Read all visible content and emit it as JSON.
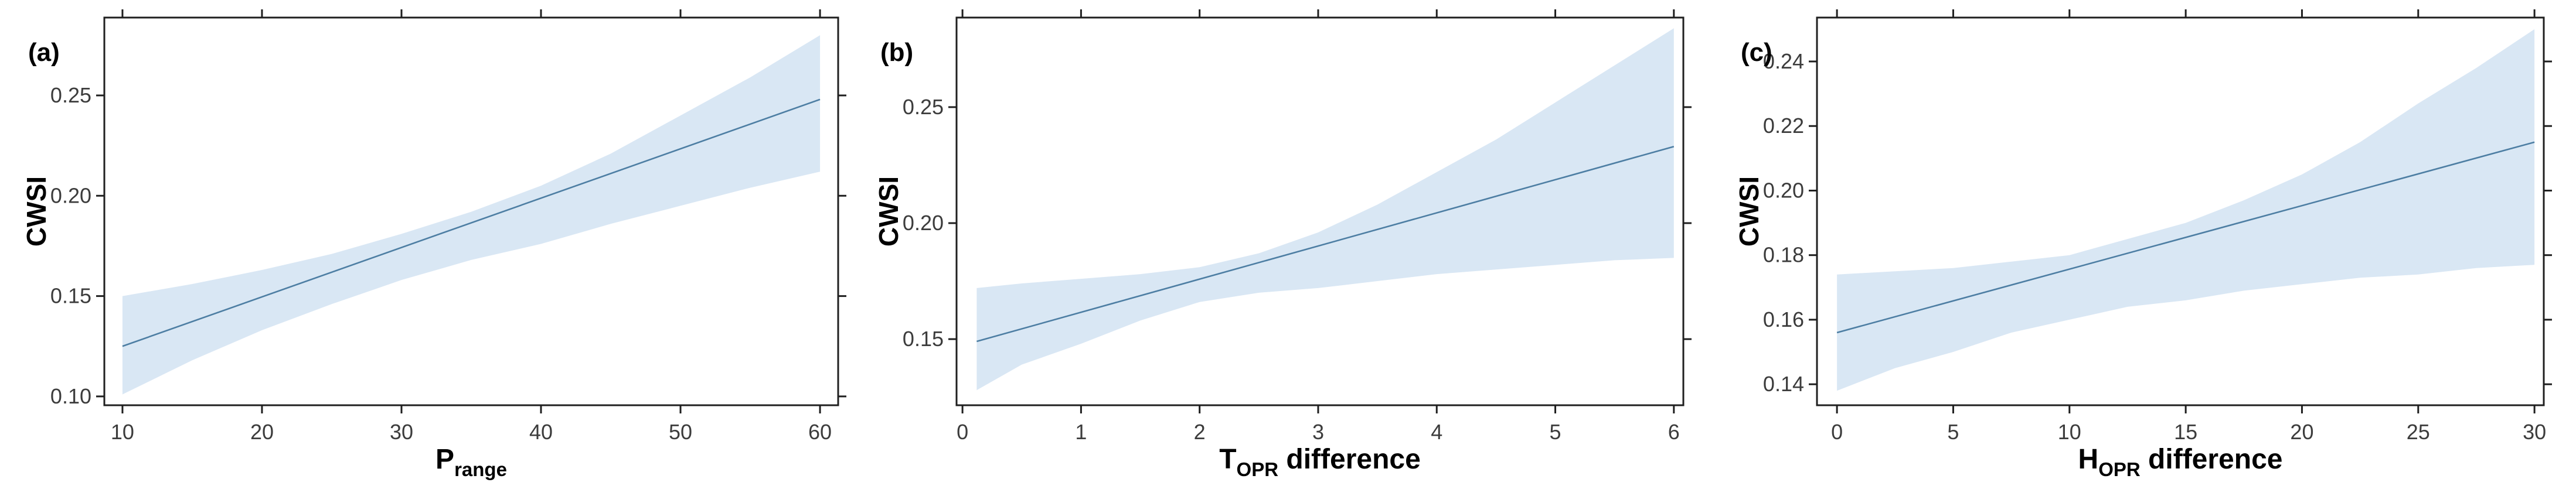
{
  "figure": {
    "style": {
      "background": "#ffffff",
      "band_color": "#d9e7f4",
      "line_color": "#4d7ea3",
      "axis_color": "#1f1f1f",
      "tick_label_color": "#3c3c3c",
      "title_color": "#000000"
    }
  },
  "chart_data": [
    {
      "type": "line",
      "panel_label": "(a)",
      "ylabel": "CWSI",
      "xlabel": {
        "base": "P",
        "sub": "range",
        "rest": ""
      },
      "x_ticks": [
        10,
        20,
        30,
        40,
        50,
        60
      ],
      "x_tick_labels": [
        "10",
        "20",
        "30",
        "40",
        "50",
        "60"
      ],
      "y_ticks": [
        0.1,
        0.15,
        0.2,
        0.25
      ],
      "y_tick_labels": [
        "0.10",
        "0.15",
        "0.20",
        "0.25"
      ],
      "xlim": [
        8.7,
        61.3
      ],
      "ylim": [
        0.0956,
        0.2888
      ],
      "grid": false,
      "legend": "none",
      "line": {
        "x": [
          10,
          60
        ],
        "y": [
          0.125,
          0.248
        ]
      },
      "band": {
        "x": [
          10,
          15,
          20,
          25,
          30,
          35,
          40,
          45,
          50,
          55,
          60
        ],
        "lower": [
          0.101,
          0.118,
          0.133,
          0.146,
          0.158,
          0.168,
          0.176,
          0.186,
          0.195,
          0.204,
          0.212
        ],
        "upper": [
          0.15,
          0.156,
          0.163,
          0.171,
          0.181,
          0.192,
          0.205,
          0.221,
          0.24,
          0.259,
          0.28
        ]
      }
    },
    {
      "type": "line",
      "panel_label": "(b)",
      "ylabel": "CWSI",
      "xlabel": {
        "base": "T",
        "sub": "OPR",
        "rest": " difference"
      },
      "x_ticks": [
        0,
        1,
        2,
        3,
        4,
        5,
        6
      ],
      "x_tick_labels": [
        "0",
        "1",
        "2",
        "3",
        "4",
        "5",
        "6"
      ],
      "y_ticks": [
        0.15,
        0.2,
        0.25
      ],
      "y_tick_labels": [
        "0.15",
        "0.20",
        "0.25"
      ],
      "xlim": [
        -0.05,
        6.08
      ],
      "ylim": [
        0.1215,
        0.2886
      ],
      "grid": false,
      "legend": "none",
      "line": {
        "x": [
          0.12,
          6
        ],
        "y": [
          0.149,
          0.233
        ]
      },
      "band": {
        "x": [
          0.12,
          0.5,
          1,
          1.5,
          2,
          2.5,
          3,
          3.5,
          4,
          4.5,
          5,
          5.5,
          6
        ],
        "lower": [
          0.128,
          0.139,
          0.148,
          0.158,
          0.166,
          0.17,
          0.172,
          0.175,
          0.178,
          0.18,
          0.182,
          0.184,
          0.185
        ],
        "upper": [
          0.172,
          0.174,
          0.176,
          0.178,
          0.181,
          0.187,
          0.196,
          0.208,
          0.222,
          0.236,
          0.252,
          0.268,
          0.284
        ]
      }
    },
    {
      "type": "line",
      "panel_label": "(c)",
      "ylabel": "CWSI",
      "xlabel": {
        "base": "H",
        "sub": "OPR",
        "rest": " difference"
      },
      "x_ticks": [
        0,
        5,
        10,
        15,
        20,
        25,
        30
      ],
      "x_tick_labels": [
        "0",
        "5",
        "10",
        "15",
        "20",
        "25",
        "30"
      ],
      "y_ticks": [
        0.14,
        0.16,
        0.18,
        0.2,
        0.22,
        0.24
      ],
      "y_tick_labels": [
        "0.14",
        "0.16",
        "0.18",
        "0.20",
        "0.22",
        "0.24"
      ],
      "xlim": [
        -0.86,
        30.4
      ],
      "ylim": [
        0.1335,
        0.2536
      ],
      "grid": false,
      "legend": "none",
      "line": {
        "x": [
          0,
          30
        ],
        "y": [
          0.156,
          0.215
        ]
      },
      "band": {
        "x": [
          0,
          2.5,
          5,
          7.5,
          10,
          12.5,
          15,
          17.5,
          20,
          22.5,
          25,
          27.5,
          30
        ],
        "lower": [
          0.138,
          0.145,
          0.15,
          0.156,
          0.16,
          0.164,
          0.166,
          0.169,
          0.171,
          0.173,
          0.174,
          0.176,
          0.177
        ],
        "upper": [
          0.174,
          0.175,
          0.176,
          0.178,
          0.18,
          0.185,
          0.19,
          0.197,
          0.205,
          0.215,
          0.227,
          0.238,
          0.25
        ]
      }
    }
  ]
}
